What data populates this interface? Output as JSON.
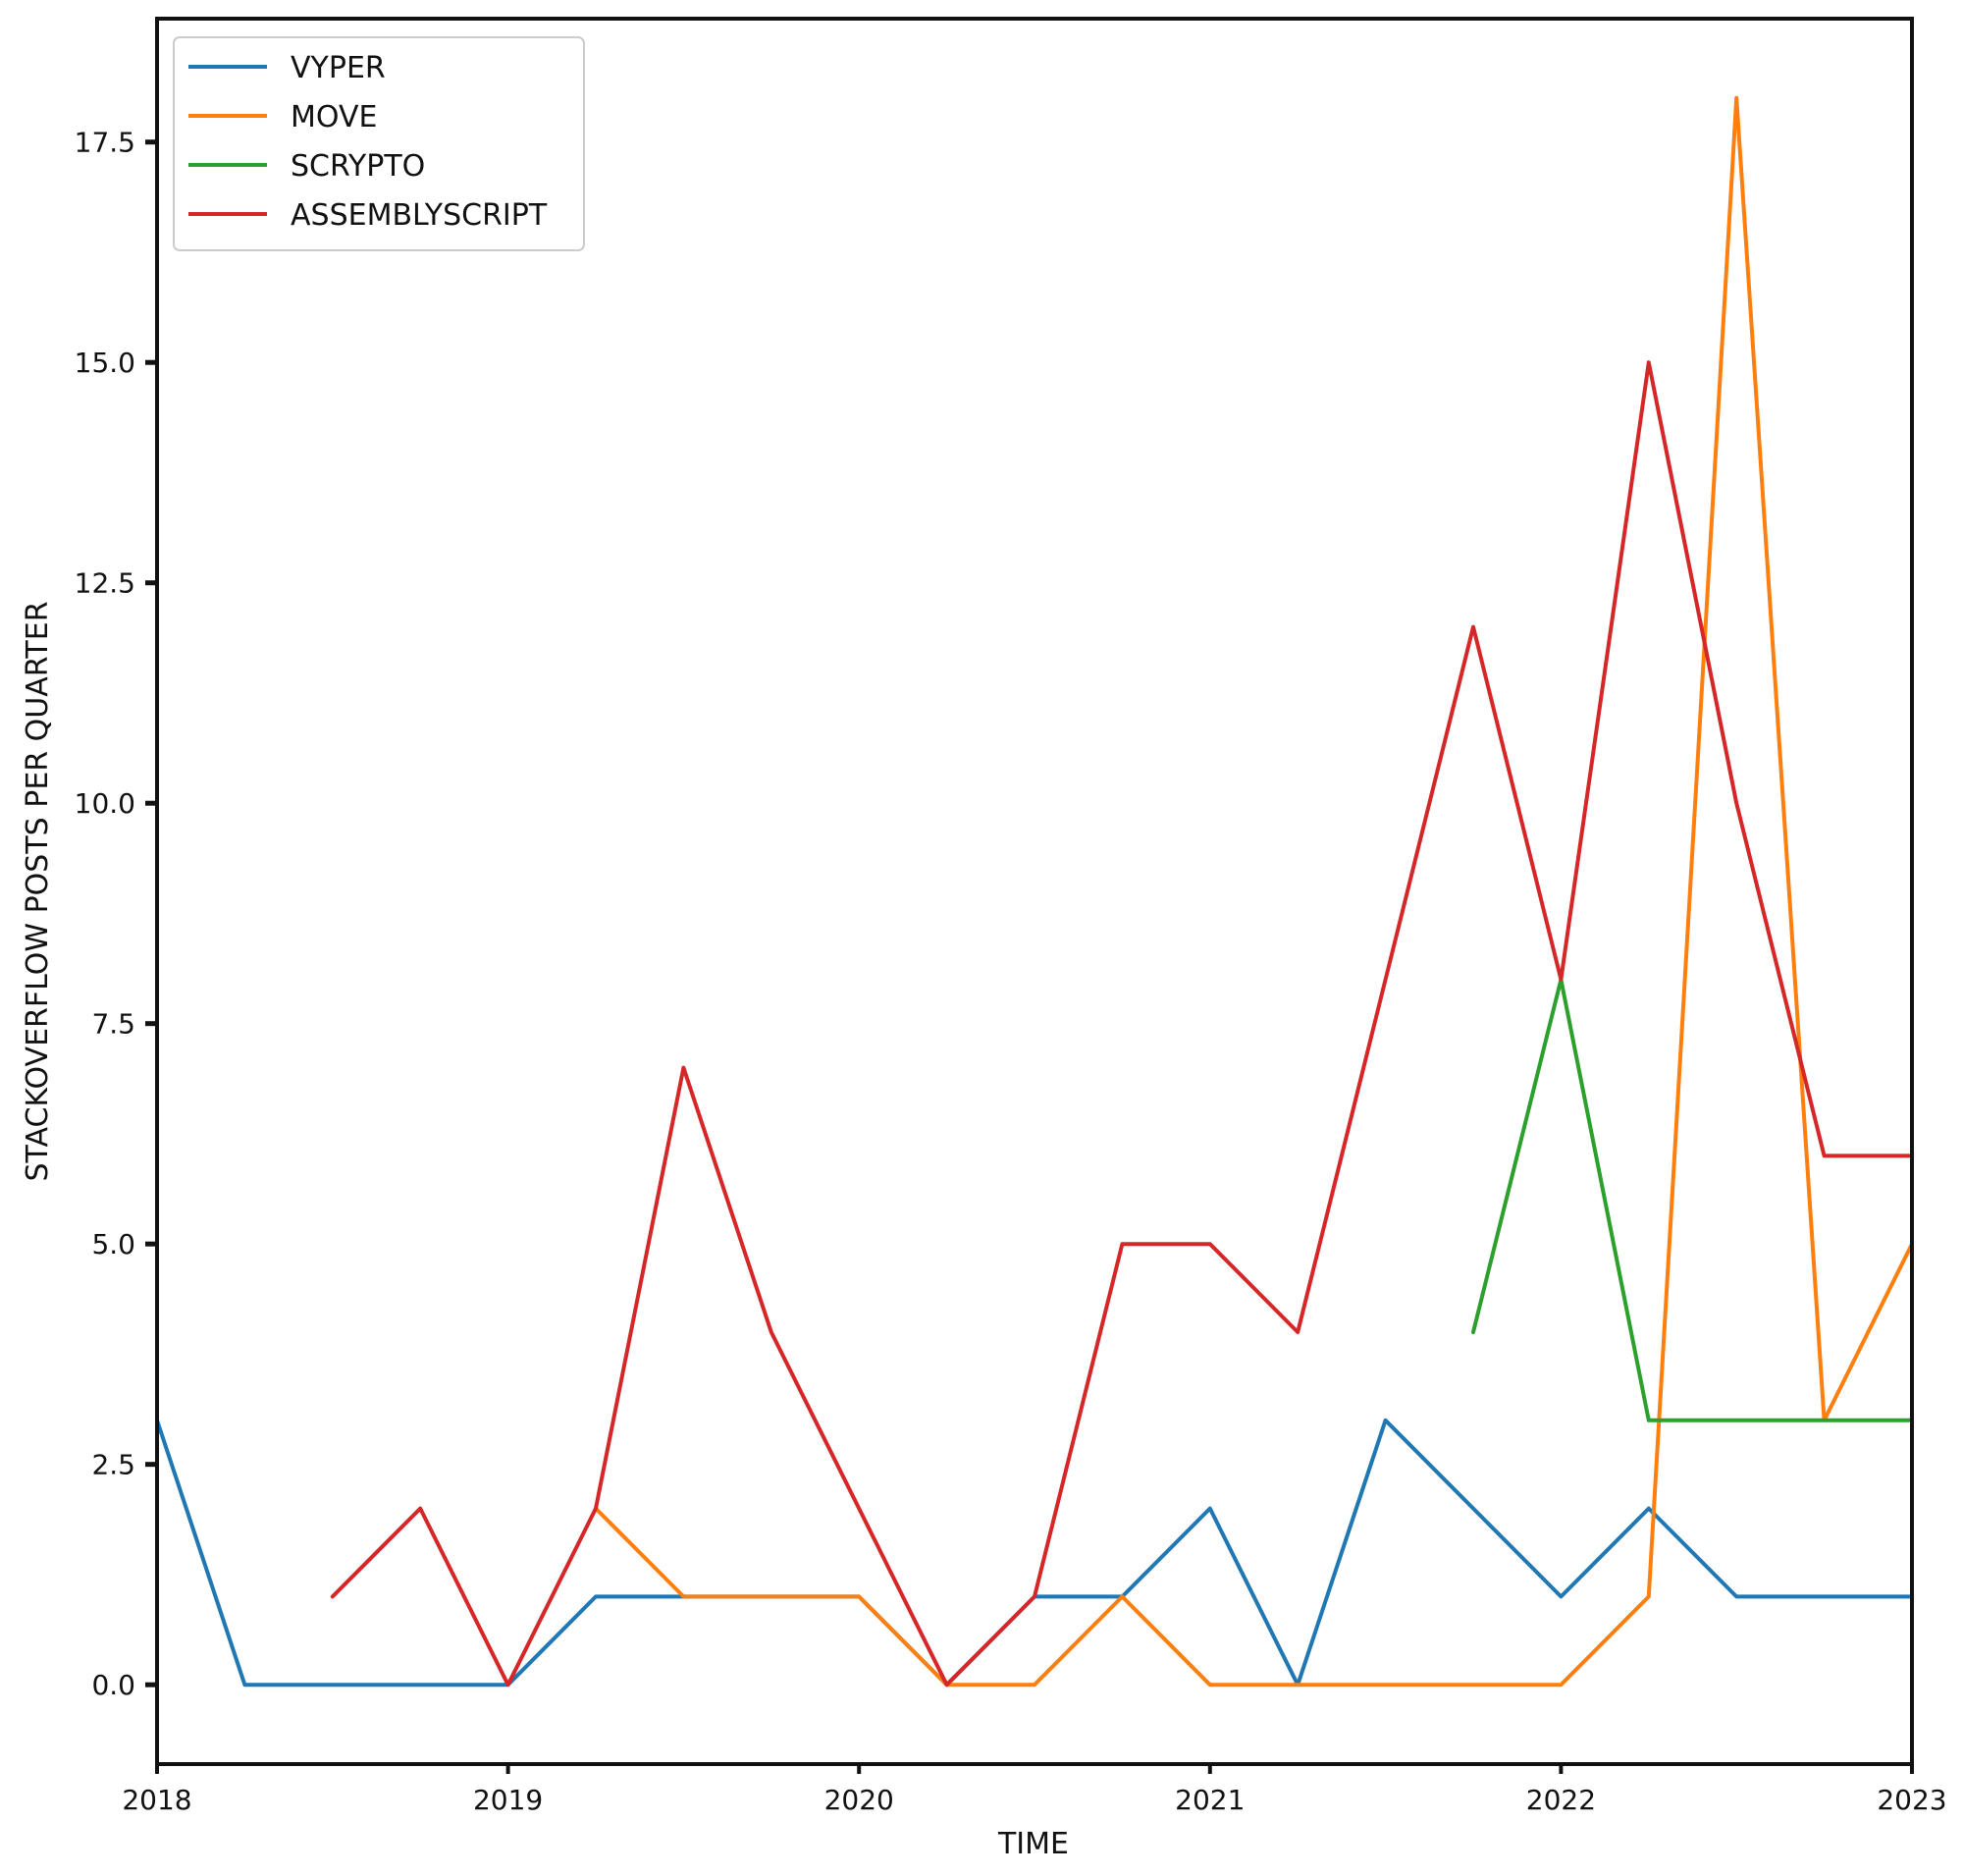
{
  "chart_data": {
    "type": "line",
    "title": "",
    "xlabel": "TIME",
    "ylabel": "STACKOVERFLOW POSTS PER QUARTER",
    "xlim": [
      2018.0,
      2023.0
    ],
    "ylim": [
      -0.9,
      18.9
    ],
    "x_ticks": [
      {
        "value": 2018,
        "label": "2018"
      },
      {
        "value": 2019,
        "label": "2019"
      },
      {
        "value": 2020,
        "label": "2020"
      },
      {
        "value": 2021,
        "label": "2021"
      },
      {
        "value": 2022,
        "label": "2022"
      },
      {
        "value": 2023,
        "label": "2023"
      }
    ],
    "y_ticks": [
      {
        "value": 0.0,
        "label": "0.0"
      },
      {
        "value": 2.5,
        "label": "2.5"
      },
      {
        "value": 5.0,
        "label": "5.0"
      },
      {
        "value": 7.5,
        "label": "7.5"
      },
      {
        "value": 10.0,
        "label": "10.0"
      },
      {
        "value": 12.5,
        "label": "12.5"
      },
      {
        "value": 15.0,
        "label": "15.0"
      },
      {
        "value": 17.5,
        "label": "17.5"
      }
    ],
    "grid": false,
    "legend_position": "top-left",
    "series": [
      {
        "name": "VYPER",
        "color": "#1f77b4",
        "points": [
          [
            2018.0,
            3
          ],
          [
            2018.25,
            0
          ],
          [
            2018.5,
            0
          ],
          [
            2018.75,
            0
          ],
          [
            2019.0,
            0
          ],
          [
            2019.25,
            1
          ],
          [
            2019.5,
            1
          ],
          [
            2019.75,
            1
          ],
          [
            2020.0,
            1
          ],
          [
            2020.25,
            0
          ],
          [
            2020.5,
            1
          ],
          [
            2020.75,
            1
          ],
          [
            2021.0,
            2
          ],
          [
            2021.25,
            0
          ],
          [
            2021.5,
            3
          ],
          [
            2021.75,
            2
          ],
          [
            2022.0,
            1
          ],
          [
            2022.25,
            2
          ],
          [
            2022.5,
            1
          ],
          [
            2022.75,
            1
          ],
          [
            2023.0,
            1
          ]
        ]
      },
      {
        "name": "MOVE",
        "color": "#ff7f0e",
        "points": [
          [
            2019.25,
            2
          ],
          [
            2019.5,
            1
          ],
          [
            2019.75,
            1
          ],
          [
            2020.0,
            1
          ],
          [
            2020.25,
            0
          ],
          [
            2020.5,
            0
          ],
          [
            2020.75,
            1
          ],
          [
            2021.0,
            0
          ],
          [
            2021.25,
            0
          ],
          [
            2021.5,
            0
          ],
          [
            2021.75,
            0
          ],
          [
            2022.0,
            0
          ],
          [
            2022.25,
            1
          ],
          [
            2022.5,
            18
          ],
          [
            2022.75,
            3
          ],
          [
            2023.0,
            5
          ]
        ]
      },
      {
        "name": "SCRYPTO",
        "color": "#2ca02c",
        "points": [
          [
            2021.75,
            4
          ],
          [
            2022.0,
            8
          ],
          [
            2022.25,
            3
          ],
          [
            2022.5,
            3
          ],
          [
            2022.75,
            3
          ],
          [
            2023.0,
            3
          ]
        ]
      },
      {
        "name": "ASSEMBLYSCRIPT",
        "color": "#d62728",
        "points": [
          [
            2018.5,
            1
          ],
          [
            2018.75,
            2
          ],
          [
            2019.0,
            0
          ],
          [
            2019.25,
            2
          ],
          [
            2019.5,
            7
          ],
          [
            2019.75,
            4
          ],
          [
            2020.0,
            2
          ],
          [
            2020.25,
            0
          ],
          [
            2020.5,
            1
          ],
          [
            2020.75,
            5
          ],
          [
            2021.0,
            5
          ],
          [
            2021.25,
            4
          ],
          [
            2021.5,
            8
          ],
          [
            2021.75,
            12
          ],
          [
            2022.0,
            8
          ],
          [
            2022.25,
            15
          ],
          [
            2022.5,
            10
          ],
          [
            2022.75,
            6
          ],
          [
            2023.0,
            6
          ]
        ]
      }
    ]
  }
}
